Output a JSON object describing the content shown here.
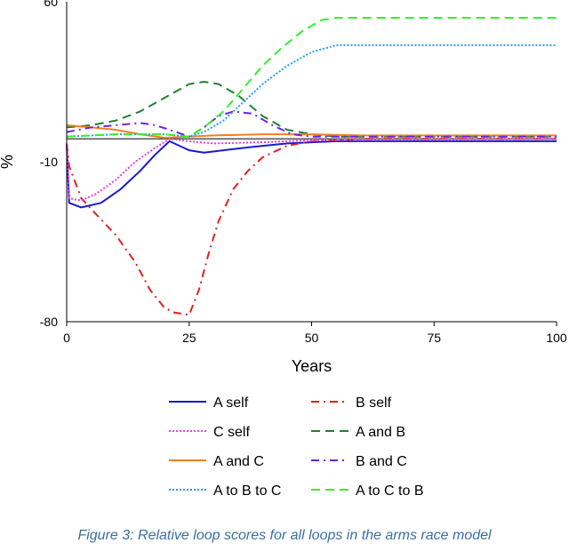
{
  "chart_data": {
    "type": "line",
    "title": "",
    "xlabel": "Years",
    "ylabel": "%",
    "xlim": [
      0,
      100
    ],
    "ylim": [
      -80,
      60
    ],
    "x_ticks": [
      0,
      25,
      50,
      75,
      100
    ],
    "y_ticks": [
      60,
      -10,
      -80
    ],
    "series": [
      {
        "name": "A self",
        "color": "#1a1acc",
        "dash": "solid",
        "points": [
          [
            0,
            -2
          ],
          [
            0.5,
            -28
          ],
          [
            3,
            -30
          ],
          [
            7,
            -28
          ],
          [
            11,
            -22
          ],
          [
            15,
            -14
          ],
          [
            18,
            -7
          ],
          [
            21,
            -1
          ],
          [
            23,
            -3
          ],
          [
            25,
            -5
          ],
          [
            28,
            -6
          ],
          [
            32,
            -5
          ],
          [
            38,
            -3.5
          ],
          [
            45,
            -2
          ],
          [
            55,
            -1
          ],
          [
            70,
            -1
          ],
          [
            100,
            -1
          ]
        ]
      },
      {
        "name": "B self",
        "color": "#e02020",
        "dash": "dashdot",
        "points": [
          [
            0,
            -2
          ],
          [
            0.5,
            -12
          ],
          [
            3,
            -26
          ],
          [
            6,
            -33
          ],
          [
            10,
            -42
          ],
          [
            14,
            -54
          ],
          [
            17,
            -66
          ],
          [
            20,
            -74
          ],
          [
            22,
            -76
          ],
          [
            25,
            -77
          ],
          [
            27,
            -66
          ],
          [
            29,
            -50
          ],
          [
            31,
            -36
          ],
          [
            34,
            -22
          ],
          [
            37,
            -14
          ],
          [
            40,
            -8
          ],
          [
            45,
            -3
          ],
          [
            50,
            -1
          ],
          [
            60,
            0
          ],
          [
            100,
            0
          ]
        ]
      },
      {
        "name": "C self",
        "color": "#e040e0",
        "dash": "dotted",
        "points": [
          [
            0,
            -2
          ],
          [
            0.5,
            -26
          ],
          [
            3,
            -27
          ],
          [
            6,
            -24
          ],
          [
            10,
            -18
          ],
          [
            14,
            -10
          ],
          [
            18,
            -4
          ],
          [
            21,
            0
          ],
          [
            25,
            -1
          ],
          [
            30,
            -2
          ],
          [
            40,
            -1.5
          ],
          [
            50,
            -0.5
          ],
          [
            100,
            0
          ]
        ]
      },
      {
        "name": "A and B",
        "color": "#208030",
        "dash": "dashed",
        "points": [
          [
            0,
            5
          ],
          [
            5,
            6
          ],
          [
            10,
            8
          ],
          [
            15,
            12
          ],
          [
            20,
            18
          ],
          [
            25,
            24
          ],
          [
            28,
            25
          ],
          [
            31,
            24
          ],
          [
            35,
            19
          ],
          [
            40,
            10
          ],
          [
            45,
            4
          ],
          [
            50,
            2
          ],
          [
            55,
            1
          ],
          [
            60,
            1
          ],
          [
            100,
            1
          ]
        ]
      },
      {
        "name": "A and C",
        "color": "#f08020",
        "dash": "solid",
        "points": [
          [
            0,
            6
          ],
          [
            5,
            5
          ],
          [
            10,
            4
          ],
          [
            15,
            2
          ],
          [
            20,
            0.5
          ],
          [
            25,
            1
          ],
          [
            30,
            1.5
          ],
          [
            40,
            2
          ],
          [
            50,
            2
          ],
          [
            60,
            1.5
          ],
          [
            100,
            1.5
          ]
        ]
      },
      {
        "name": "B and C",
        "color": "#7020e0",
        "dash": "dashdot",
        "points": [
          [
            0,
            3
          ],
          [
            5,
            5
          ],
          [
            10,
            6
          ],
          [
            15,
            7
          ],
          [
            18,
            6
          ],
          [
            21,
            4
          ],
          [
            25,
            1
          ],
          [
            28,
            5
          ],
          [
            31,
            10
          ],
          [
            34,
            12
          ],
          [
            38,
            11
          ],
          [
            42,
            6
          ],
          [
            46,
            2
          ],
          [
            50,
            1
          ],
          [
            60,
            1
          ],
          [
            100,
            1
          ]
        ]
      },
      {
        "name": "A to B to C",
        "color": "#20a0e0",
        "dash": "dotted",
        "points": [
          [
            0,
            1
          ],
          [
            10,
            2
          ],
          [
            20,
            2
          ],
          [
            25,
            1
          ],
          [
            28,
            3
          ],
          [
            32,
            8
          ],
          [
            36,
            16
          ],
          [
            40,
            24
          ],
          [
            45,
            32
          ],
          [
            50,
            38
          ],
          [
            55,
            41
          ],
          [
            60,
            41
          ],
          [
            100,
            41
          ]
        ]
      },
      {
        "name": "A to C to B",
        "color": "#33ee33",
        "dash": "dashed",
        "points": [
          [
            0,
            1
          ],
          [
            10,
            2
          ],
          [
            20,
            2
          ],
          [
            25,
            1
          ],
          [
            28,
            5
          ],
          [
            32,
            12
          ],
          [
            36,
            22
          ],
          [
            40,
            32
          ],
          [
            44,
            40
          ],
          [
            48,
            47
          ],
          [
            52,
            52
          ],
          [
            55,
            53
          ],
          [
            100,
            53
          ]
        ]
      }
    ],
    "legend_position": "bottom",
    "caption": "Figure 3: Relative loop scores for all loops in the arms race model"
  }
}
